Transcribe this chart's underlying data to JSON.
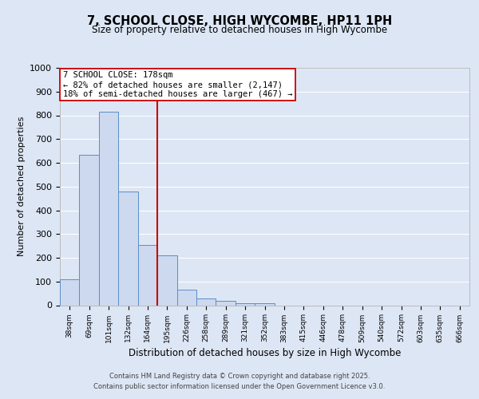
{
  "title": "7, SCHOOL CLOSE, HIGH WYCOMBE, HP11 1PH",
  "subtitle": "Size of property relative to detached houses in High Wycombe",
  "xlabel": "Distribution of detached houses by size in High Wycombe",
  "ylabel": "Number of detached properties",
  "bar_labels": [
    "38sqm",
    "69sqm",
    "101sqm",
    "132sqm",
    "164sqm",
    "195sqm",
    "226sqm",
    "258sqm",
    "289sqm",
    "321sqm",
    "352sqm",
    "383sqm",
    "415sqm",
    "446sqm",
    "478sqm",
    "509sqm",
    "540sqm",
    "572sqm",
    "603sqm",
    "635sqm",
    "666sqm"
  ],
  "bar_values": [
    110,
    635,
    815,
    480,
    255,
    210,
    65,
    28,
    18,
    10,
    7,
    0,
    0,
    0,
    0,
    0,
    0,
    0,
    0,
    0,
    0
  ],
  "bar_color": "#ccd9ee",
  "bar_edge_color": "#5b8dc8",
  "vline_color": "#cc0000",
  "annotation_line1": "7 SCHOOL CLOSE: 178sqm",
  "annotation_line2": "← 82% of detached houses are smaller (2,147)",
  "annotation_line3": "18% of semi-detached houses are larger (467) →",
  "annotation_box_facecolor": "#ffffff",
  "annotation_box_edgecolor": "#cc0000",
  "ylim": [
    0,
    1000
  ],
  "yticks": [
    0,
    100,
    200,
    300,
    400,
    500,
    600,
    700,
    800,
    900,
    1000
  ],
  "footer_line1": "Contains HM Land Registry data © Crown copyright and database right 2025.",
  "footer_line2": "Contains public sector information licensed under the Open Government Licence v3.0.",
  "bg_color": "#dde6f5",
  "plot_bg_color": "#dde6f5",
  "grid_color": "#ffffff"
}
